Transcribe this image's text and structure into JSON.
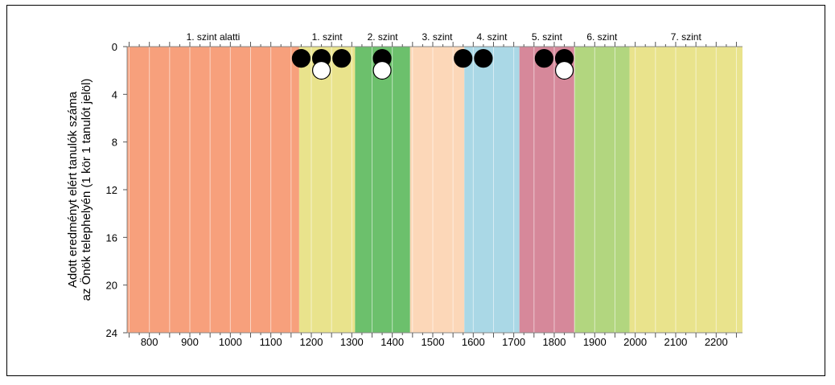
{
  "chart_data": {
    "type": "scatter",
    "title": "",
    "ylabel": [
      "Adott eredményt elért tanulók száma",
      "az Önök telephelyén (1 kör 1 tanulót jelöl)"
    ],
    "xlabel": "",
    "xlim": [
      745,
      2265
    ],
    "ylim": [
      0,
      24
    ],
    "y_inverted": true,
    "x_ticks": [
      800,
      900,
      1000,
      1100,
      1200,
      1300,
      1400,
      1500,
      1600,
      1700,
      1800,
      1900,
      2000,
      2100,
      2200
    ],
    "y_ticks": [
      0,
      4,
      8,
      12,
      16,
      20,
      24
    ],
    "grid": "vertical minor every 50",
    "bands": [
      {
        "label": "1. szint alatti",
        "from": 745,
        "to": 1170,
        "color": "#f7a07c"
      },
      {
        "label": "1. szint",
        "from": 1170,
        "to": 1308,
        "color": "#e9e38c"
      },
      {
        "label": "2. szint",
        "from": 1308,
        "to": 1444,
        "color": "#6cc06c"
      },
      {
        "label": "3. szint",
        "from": 1444,
        "to": 1578,
        "color": "#fcd7b8"
      },
      {
        "label": "4. szint",
        "from": 1578,
        "to": 1714,
        "color": "#aad8e6"
      },
      {
        "label": "5. szint",
        "from": 1714,
        "to": 1850,
        "color": "#d6889a"
      },
      {
        "label": "6. szint",
        "from": 1850,
        "to": 1986,
        "color": "#b2d67f"
      },
      {
        "label": "7. szint",
        "from": 1986,
        "to": 2265,
        "color": "#e9e38c"
      }
    ],
    "series": [
      {
        "color": "#000000",
        "points": [
          {
            "x": 1175,
            "y": 1
          },
          {
            "x": 1225,
            "y": 1
          },
          {
            "x": 1275,
            "y": 1
          },
          {
            "x": 1375,
            "y": 1
          },
          {
            "x": 1575,
            "y": 1
          },
          {
            "x": 1625,
            "y": 1
          },
          {
            "x": 1775,
            "y": 1
          },
          {
            "x": 1825,
            "y": 1
          }
        ]
      },
      {
        "color": "#ffffff",
        "points": [
          {
            "x": 1225,
            "y": 2
          },
          {
            "x": 1375,
            "y": 2
          },
          {
            "x": 1825,
            "y": 2
          }
        ]
      }
    ]
  }
}
